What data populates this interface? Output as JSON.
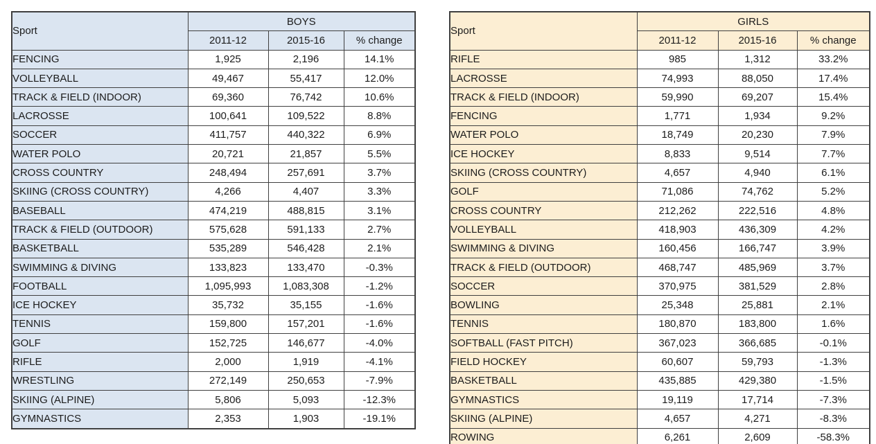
{
  "page": {
    "background_color": "#ffffff",
    "border_color": "#3f3f3f"
  },
  "tables": [
    {
      "name": "boys",
      "sport_label": "Sport",
      "group_label": "BOYS",
      "columns": [
        "2011-12",
        "2015-16",
        "% change"
      ],
      "accent_color": "#dbe5f1",
      "rows": [
        [
          "FENCING",
          "1,925",
          "2,196",
          "14.1%"
        ],
        [
          "VOLLEYBALL",
          "49,467",
          "55,417",
          "12.0%"
        ],
        [
          "TRACK & FIELD (INDOOR)",
          "69,360",
          "76,742",
          "10.6%"
        ],
        [
          "LACROSSE",
          "100,641",
          "109,522",
          "8.8%"
        ],
        [
          "SOCCER",
          "411,757",
          "440,322",
          "6.9%"
        ],
        [
          "WATER POLO",
          "20,721",
          "21,857",
          "5.5%"
        ],
        [
          "CROSS COUNTRY",
          "248,494",
          "257,691",
          "3.7%"
        ],
        [
          "SKIING (CROSS COUNTRY)",
          "4,266",
          "4,407",
          "3.3%"
        ],
        [
          "BASEBALL",
          "474,219",
          "488,815",
          "3.1%"
        ],
        [
          "TRACK & FIELD (OUTDOOR)",
          "575,628",
          "591,133",
          "2.7%"
        ],
        [
          "BASKETBALL",
          "535,289",
          "546,428",
          "2.1%"
        ],
        [
          "SWIMMING & DIVING",
          "133,823",
          "133,470",
          "-0.3%"
        ],
        [
          "FOOTBALL",
          "1,095,993",
          "1,083,308",
          "-1.2%"
        ],
        [
          "ICE HOCKEY",
          "35,732",
          "35,155",
          "-1.6%"
        ],
        [
          "TENNIS",
          "159,800",
          "157,201",
          "-1.6%"
        ],
        [
          "GOLF",
          "152,725",
          "146,677",
          "-4.0%"
        ],
        [
          "RIFLE",
          "2,000",
          "1,919",
          "-4.1%"
        ],
        [
          "WRESTLING",
          "272,149",
          "250,653",
          "-7.9%"
        ],
        [
          "SKIING (ALPINE)",
          "5,806",
          "5,093",
          "-12.3%"
        ],
        [
          "GYMNASTICS",
          "2,353",
          "1,903",
          "-19.1%"
        ]
      ]
    },
    {
      "name": "girls",
      "sport_label": "Sport",
      "group_label": "GIRLS",
      "columns": [
        "2011-12",
        "2015-16",
        "% change"
      ],
      "accent_color": "#fceed3",
      "rows": [
        [
          "RIFLE",
          "985",
          "1,312",
          "33.2%"
        ],
        [
          "LACROSSE",
          "74,993",
          "88,050",
          "17.4%"
        ],
        [
          "TRACK & FIELD (INDOOR)",
          "59,990",
          "69,207",
          "15.4%"
        ],
        [
          "FENCING",
          "1,771",
          "1,934",
          "9.2%"
        ],
        [
          "WATER POLO",
          "18,749",
          "20,230",
          "7.9%"
        ],
        [
          "ICE HOCKEY",
          "8,833",
          "9,514",
          "7.7%"
        ],
        [
          "SKIING (CROSS COUNTRY)",
          "4,657",
          "4,940",
          "6.1%"
        ],
        [
          "GOLF",
          "71,086",
          "74,762",
          "5.2%"
        ],
        [
          "CROSS COUNTRY",
          "212,262",
          "222,516",
          "4.8%"
        ],
        [
          "VOLLEYBALL",
          "418,903",
          "436,309",
          "4.2%"
        ],
        [
          "SWIMMING & DIVING",
          "160,456",
          "166,747",
          "3.9%"
        ],
        [
          "TRACK & FIELD (OUTDOOR)",
          "468,747",
          "485,969",
          "3.7%"
        ],
        [
          "SOCCER",
          "370,975",
          "381,529",
          "2.8%"
        ],
        [
          "BOWLING",
          "25,348",
          "25,881",
          "2.1%"
        ],
        [
          "TENNIS",
          "180,870",
          "183,800",
          "1.6%"
        ],
        [
          "SOFTBALL (FAST PITCH)",
          "367,023",
          "366,685",
          "-0.1%"
        ],
        [
          "FIELD HOCKEY",
          "60,607",
          "59,793",
          "-1.3%"
        ],
        [
          "BASKETBALL",
          "435,885",
          "429,380",
          "-1.5%"
        ],
        [
          "GYMNASTICS",
          "19,119",
          "17,714",
          "-7.3%"
        ],
        [
          "SKIING (ALPINE)",
          "4,657",
          "4,271",
          "-8.3%"
        ],
        [
          "ROWING",
          "6,261",
          "2,609",
          "-58.3%"
        ]
      ]
    }
  ]
}
